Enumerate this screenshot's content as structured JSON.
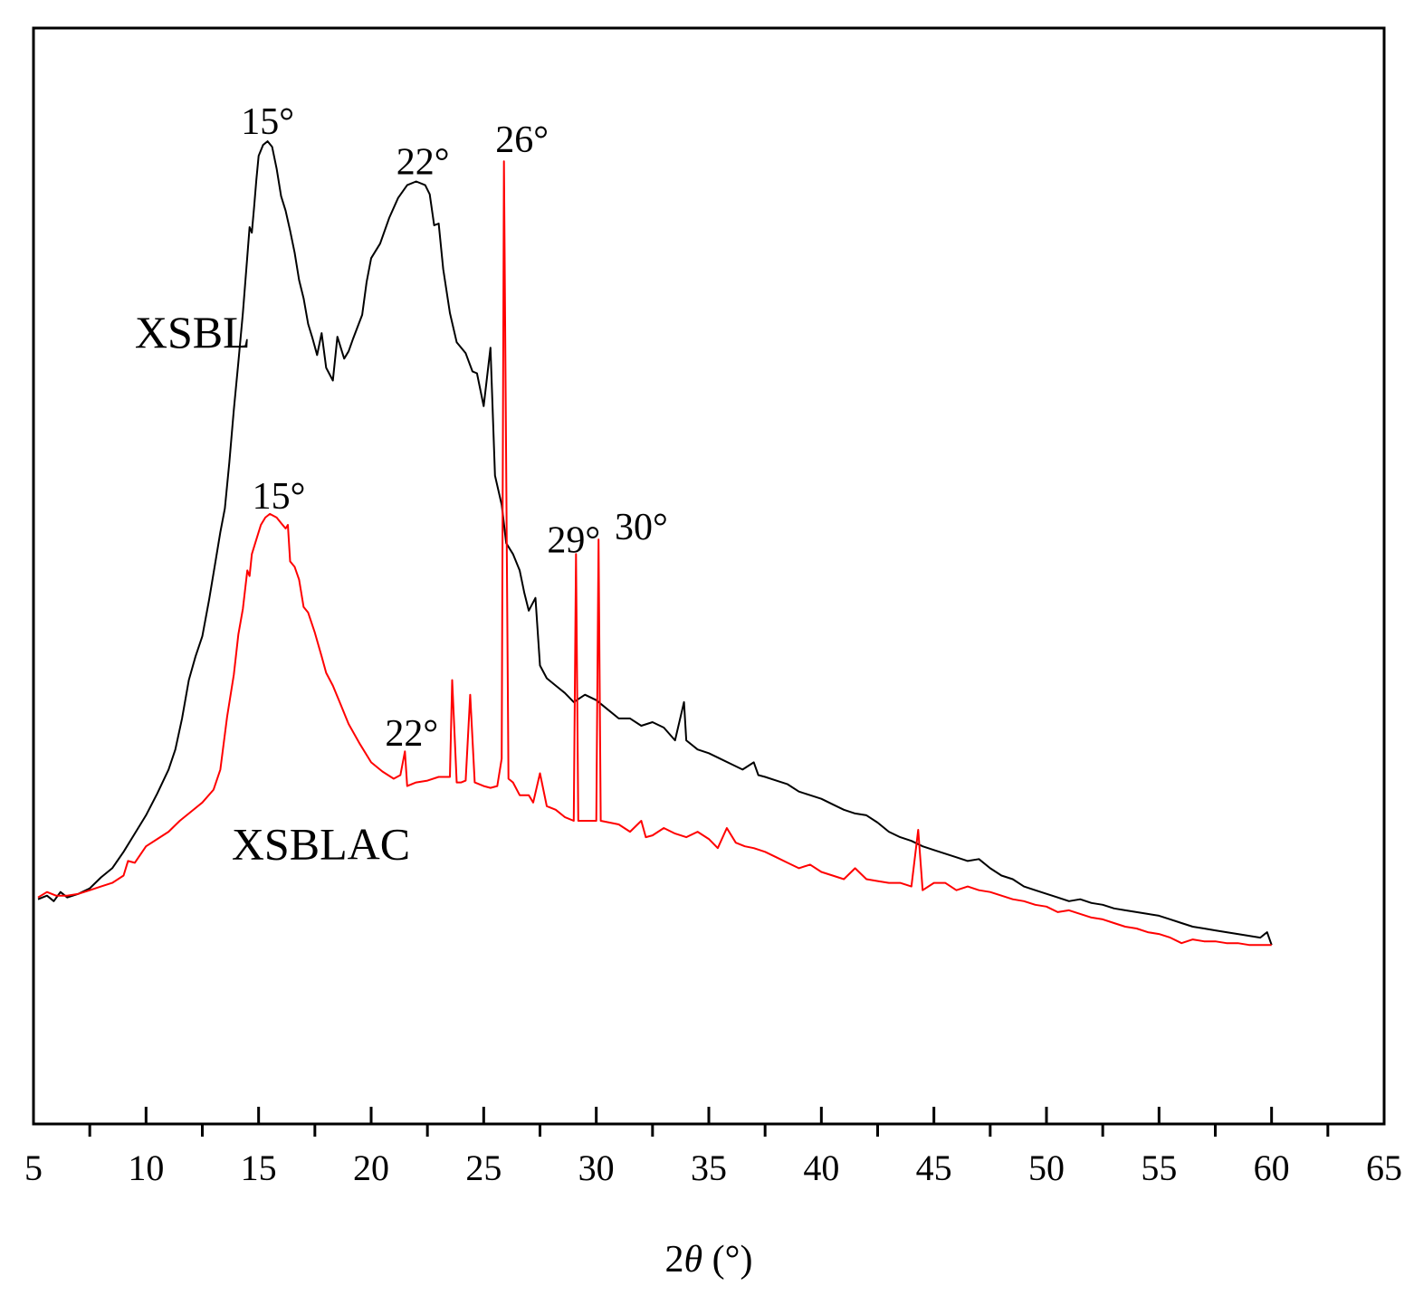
{
  "chart_data": {
    "type": "line",
    "title": "",
    "xlabel_prefix": "2",
    "xlabel_symbol": "θ",
    "xlabel_suffix": " (°)",
    "ylabel": "",
    "xlim": [
      5,
      65
    ],
    "ylim": [
      -0.5,
      5.5
    ],
    "x_ticks": [
      5,
      10,
      15,
      20,
      25,
      30,
      35,
      40,
      45,
      50,
      55,
      60,
      65
    ],
    "x_minor_ticks": [
      7.5,
      12.5,
      17.5,
      22.5,
      27.5,
      32.5,
      37.5,
      42.5,
      47.5,
      52.5,
      57.5,
      62.5
    ],
    "grid": false,
    "series": [
      {
        "name": "XSBL",
        "color": "#000000",
        "label_pos": [
          9.5,
          3.75
        ],
        "points": [
          [
            5.2,
            0.73
          ],
          [
            5.6,
            0.75
          ],
          [
            5.9,
            0.72
          ],
          [
            6.2,
            0.77
          ],
          [
            6.5,
            0.74
          ],
          [
            7.0,
            0.76
          ],
          [
            7.5,
            0.79
          ],
          [
            8.0,
            0.85
          ],
          [
            8.5,
            0.9
          ],
          [
            9.0,
            0.99
          ],
          [
            9.5,
            1.09
          ],
          [
            10.0,
            1.19
          ],
          [
            10.5,
            1.31
          ],
          [
            11.0,
            1.44
          ],
          [
            11.3,
            1.55
          ],
          [
            11.6,
            1.72
          ],
          [
            11.9,
            1.93
          ],
          [
            12.2,
            2.06
          ],
          [
            12.5,
            2.17
          ],
          [
            12.8,
            2.37
          ],
          [
            13.1,
            2.59
          ],
          [
            13.3,
            2.74
          ],
          [
            13.5,
            2.87
          ],
          [
            13.7,
            3.12
          ],
          [
            13.9,
            3.41
          ],
          [
            14.1,
            3.67
          ],
          [
            14.3,
            3.94
          ],
          [
            14.5,
            4.25
          ],
          [
            14.6,
            4.41
          ],
          [
            14.7,
            4.38
          ],
          [
            14.8,
            4.52
          ],
          [
            14.9,
            4.67
          ],
          [
            15.0,
            4.8
          ],
          [
            15.2,
            4.86
          ],
          [
            15.4,
            4.88
          ],
          [
            15.6,
            4.85
          ],
          [
            15.8,
            4.73
          ],
          [
            16.0,
            4.58
          ],
          [
            16.2,
            4.5
          ],
          [
            16.4,
            4.39
          ],
          [
            16.6,
            4.27
          ],
          [
            16.8,
            4.12
          ],
          [
            17.0,
            4.02
          ],
          [
            17.2,
            3.88
          ],
          [
            17.4,
            3.8
          ],
          [
            17.6,
            3.71
          ],
          [
            17.8,
            3.83
          ],
          [
            18.0,
            3.64
          ],
          [
            18.3,
            3.57
          ],
          [
            18.5,
            3.81
          ],
          [
            18.8,
            3.69
          ],
          [
            19.0,
            3.73
          ],
          [
            19.2,
            3.8
          ],
          [
            19.6,
            3.93
          ],
          [
            19.8,
            4.11
          ],
          [
            20.0,
            4.24
          ],
          [
            20.4,
            4.32
          ],
          [
            20.8,
            4.46
          ],
          [
            21.2,
            4.57
          ],
          [
            21.6,
            4.64
          ],
          [
            22.0,
            4.66
          ],
          [
            22.4,
            4.64
          ],
          [
            22.6,
            4.59
          ],
          [
            22.8,
            4.42
          ],
          [
            23.0,
            4.43
          ],
          [
            23.2,
            4.18
          ],
          [
            23.5,
            3.94
          ],
          [
            23.8,
            3.78
          ],
          [
            24.2,
            3.72
          ],
          [
            24.5,
            3.62
          ],
          [
            24.7,
            3.61
          ],
          [
            25.0,
            3.43
          ],
          [
            25.3,
            3.75
          ],
          [
            25.5,
            3.05
          ],
          [
            25.8,
            2.89
          ],
          [
            26.0,
            2.68
          ],
          [
            26.3,
            2.62
          ],
          [
            26.6,
            2.53
          ],
          [
            26.8,
            2.41
          ],
          [
            27.0,
            2.31
          ],
          [
            27.3,
            2.38
          ],
          [
            27.5,
            2.01
          ],
          [
            27.8,
            1.94
          ],
          [
            28.2,
            1.9
          ],
          [
            28.6,
            1.86
          ],
          [
            29.0,
            1.81
          ],
          [
            29.5,
            1.85
          ],
          [
            30.0,
            1.82
          ],
          [
            30.5,
            1.77
          ],
          [
            31.0,
            1.72
          ],
          [
            31.5,
            1.72
          ],
          [
            32.0,
            1.68
          ],
          [
            32.5,
            1.7
          ],
          [
            33.0,
            1.67
          ],
          [
            33.5,
            1.6
          ],
          [
            33.9,
            1.81
          ],
          [
            34.0,
            1.6
          ],
          [
            34.5,
            1.55
          ],
          [
            35.0,
            1.53
          ],
          [
            35.5,
            1.5
          ],
          [
            36.0,
            1.47
          ],
          [
            36.5,
            1.44
          ],
          [
            37.0,
            1.48
          ],
          [
            37.2,
            1.41
          ],
          [
            37.5,
            1.4
          ],
          [
            38.0,
            1.38
          ],
          [
            38.5,
            1.36
          ],
          [
            39.0,
            1.32
          ],
          [
            39.5,
            1.3
          ],
          [
            40.0,
            1.28
          ],
          [
            40.5,
            1.25
          ],
          [
            41.0,
            1.22
          ],
          [
            41.5,
            1.2
          ],
          [
            42.0,
            1.19
          ],
          [
            42.5,
            1.15
          ],
          [
            43.0,
            1.1
          ],
          [
            43.5,
            1.07
          ],
          [
            44.0,
            1.05
          ],
          [
            44.5,
            1.02
          ],
          [
            45.0,
            1.0
          ],
          [
            45.5,
            0.98
          ],
          [
            46.0,
            0.96
          ],
          [
            46.5,
            0.94
          ],
          [
            47.0,
            0.95
          ],
          [
            47.5,
            0.9
          ],
          [
            48.0,
            0.86
          ],
          [
            48.5,
            0.84
          ],
          [
            49.0,
            0.8
          ],
          [
            49.5,
            0.78
          ],
          [
            50.0,
            0.76
          ],
          [
            50.5,
            0.74
          ],
          [
            51.0,
            0.72
          ],
          [
            51.5,
            0.73
          ],
          [
            52.0,
            0.71
          ],
          [
            52.5,
            0.7
          ],
          [
            53.0,
            0.68
          ],
          [
            53.5,
            0.67
          ],
          [
            54.0,
            0.66
          ],
          [
            54.5,
            0.65
          ],
          [
            55.0,
            0.64
          ],
          [
            55.5,
            0.62
          ],
          [
            56.0,
            0.6
          ],
          [
            56.5,
            0.58
          ],
          [
            57.0,
            0.57
          ],
          [
            57.5,
            0.56
          ],
          [
            58.0,
            0.55
          ],
          [
            58.5,
            0.54
          ],
          [
            59.0,
            0.53
          ],
          [
            59.5,
            0.52
          ],
          [
            59.8,
            0.55
          ],
          [
            60.0,
            0.48
          ]
        ]
      },
      {
        "name": "XSBLAC",
        "color": "#ff0000",
        "label_pos": [
          13.8,
          0.95
        ],
        "points": [
          [
            5.2,
            0.74
          ],
          [
            5.6,
            0.77
          ],
          [
            6.0,
            0.75
          ],
          [
            6.5,
            0.75
          ],
          [
            7.0,
            0.76
          ],
          [
            7.5,
            0.78
          ],
          [
            8.0,
            0.8
          ],
          [
            8.5,
            0.82
          ],
          [
            9.0,
            0.86
          ],
          [
            9.2,
            0.94
          ],
          [
            9.5,
            0.93
          ],
          [
            10.0,
            1.02
          ],
          [
            10.5,
            1.06
          ],
          [
            11.0,
            1.1
          ],
          [
            11.5,
            1.16
          ],
          [
            12.0,
            1.21
          ],
          [
            12.5,
            1.26
          ],
          [
            13.0,
            1.33
          ],
          [
            13.3,
            1.44
          ],
          [
            13.6,
            1.73
          ],
          [
            13.9,
            1.96
          ],
          [
            14.1,
            2.18
          ],
          [
            14.3,
            2.32
          ],
          [
            14.5,
            2.53
          ],
          [
            14.6,
            2.5
          ],
          [
            14.7,
            2.62
          ],
          [
            14.9,
            2.7
          ],
          [
            15.1,
            2.78
          ],
          [
            15.3,
            2.82
          ],
          [
            15.5,
            2.84
          ],
          [
            15.8,
            2.82
          ],
          [
            16.0,
            2.79
          ],
          [
            16.2,
            2.76
          ],
          [
            16.3,
            2.78
          ],
          [
            16.4,
            2.58
          ],
          [
            16.6,
            2.55
          ],
          [
            16.8,
            2.48
          ],
          [
            17.0,
            2.33
          ],
          [
            17.2,
            2.3
          ],
          [
            17.5,
            2.19
          ],
          [
            17.8,
            2.06
          ],
          [
            18.0,
            1.97
          ],
          [
            18.3,
            1.9
          ],
          [
            18.6,
            1.81
          ],
          [
            19.0,
            1.69
          ],
          [
            19.5,
            1.58
          ],
          [
            20.0,
            1.48
          ],
          [
            20.5,
            1.43
          ],
          [
            21.0,
            1.39
          ],
          [
            21.3,
            1.41
          ],
          [
            21.5,
            1.54
          ],
          [
            21.6,
            1.35
          ],
          [
            22.0,
            1.37
          ],
          [
            22.5,
            1.38
          ],
          [
            23.0,
            1.4
          ],
          [
            23.5,
            1.4
          ],
          [
            23.6,
            1.93
          ],
          [
            23.8,
            1.37
          ],
          [
            24.0,
            1.37
          ],
          [
            24.2,
            1.38
          ],
          [
            24.4,
            1.85
          ],
          [
            24.6,
            1.37
          ],
          [
            25.0,
            1.35
          ],
          [
            25.3,
            1.34
          ],
          [
            25.6,
            1.35
          ],
          [
            25.8,
            1.5
          ],
          [
            25.9,
            4.77
          ],
          [
            26.1,
            1.39
          ],
          [
            26.3,
            1.37
          ],
          [
            26.6,
            1.3
          ],
          [
            27.0,
            1.3
          ],
          [
            27.2,
            1.26
          ],
          [
            27.5,
            1.42
          ],
          [
            27.8,
            1.24
          ],
          [
            28.2,
            1.22
          ],
          [
            28.6,
            1.18
          ],
          [
            29.0,
            1.16
          ],
          [
            29.1,
            2.62
          ],
          [
            29.2,
            1.16
          ],
          [
            30.0,
            1.16
          ],
          [
            30.1,
            2.7
          ],
          [
            30.2,
            1.16
          ],
          [
            30.6,
            1.15
          ],
          [
            31.0,
            1.14
          ],
          [
            31.5,
            1.1
          ],
          [
            32.0,
            1.16
          ],
          [
            32.2,
            1.07
          ],
          [
            32.5,
            1.08
          ],
          [
            33.0,
            1.12
          ],
          [
            33.5,
            1.09
          ],
          [
            34.0,
            1.07
          ],
          [
            34.5,
            1.1
          ],
          [
            35.0,
            1.06
          ],
          [
            35.4,
            1.01
          ],
          [
            35.8,
            1.12
          ],
          [
            36.2,
            1.04
          ],
          [
            36.6,
            1.02
          ],
          [
            37.0,
            1.01
          ],
          [
            37.5,
            0.99
          ],
          [
            38.0,
            0.96
          ],
          [
            38.5,
            0.93
          ],
          [
            39.0,
            0.9
          ],
          [
            39.5,
            0.92
          ],
          [
            40.0,
            0.88
          ],
          [
            40.5,
            0.86
          ],
          [
            41.0,
            0.84
          ],
          [
            41.5,
            0.9
          ],
          [
            42.0,
            0.84
          ],
          [
            42.5,
            0.83
          ],
          [
            43.0,
            0.82
          ],
          [
            43.5,
            0.82
          ],
          [
            44.0,
            0.8
          ],
          [
            44.3,
            1.11
          ],
          [
            44.5,
            0.78
          ],
          [
            45.0,
            0.82
          ],
          [
            45.5,
            0.82
          ],
          [
            46.0,
            0.78
          ],
          [
            46.5,
            0.8
          ],
          [
            47.0,
            0.78
          ],
          [
            47.5,
            0.77
          ],
          [
            48.0,
            0.75
          ],
          [
            48.5,
            0.73
          ],
          [
            49.0,
            0.72
          ],
          [
            49.5,
            0.7
          ],
          [
            50.0,
            0.69
          ],
          [
            50.5,
            0.66
          ],
          [
            51.0,
            0.67
          ],
          [
            51.5,
            0.65
          ],
          [
            52.0,
            0.63
          ],
          [
            52.5,
            0.62
          ],
          [
            53.0,
            0.6
          ],
          [
            53.5,
            0.58
          ],
          [
            54.0,
            0.57
          ],
          [
            54.5,
            0.55
          ],
          [
            55.0,
            0.54
          ],
          [
            55.5,
            0.52
          ],
          [
            56.0,
            0.49
          ],
          [
            56.5,
            0.51
          ],
          [
            57.0,
            0.5
          ],
          [
            57.5,
            0.5
          ],
          [
            58.0,
            0.49
          ],
          [
            58.5,
            0.49
          ],
          [
            59.0,
            0.48
          ],
          [
            59.5,
            0.48
          ],
          [
            60.0,
            0.48
          ]
        ]
      }
    ],
    "annotations": [
      {
        "text": "15°",
        "x": 15.4,
        "y": 4.92,
        "color": "#000000"
      },
      {
        "text": "22°",
        "x": 22.3,
        "y": 4.7,
        "color": "#000000"
      },
      {
        "text": "26°",
        "x": 26.7,
        "y": 4.82,
        "color": "#000000"
      },
      {
        "text": "15°",
        "x": 15.9,
        "y": 2.87,
        "color": "#000000"
      },
      {
        "text": "29°",
        "x": 29.0,
        "y": 2.63,
        "color": "#000000"
      },
      {
        "text": "30°",
        "x": 32.0,
        "y": 2.7,
        "color": "#000000"
      },
      {
        "text": "22°",
        "x": 21.8,
        "y": 1.57,
        "color": "#000000"
      }
    ]
  }
}
